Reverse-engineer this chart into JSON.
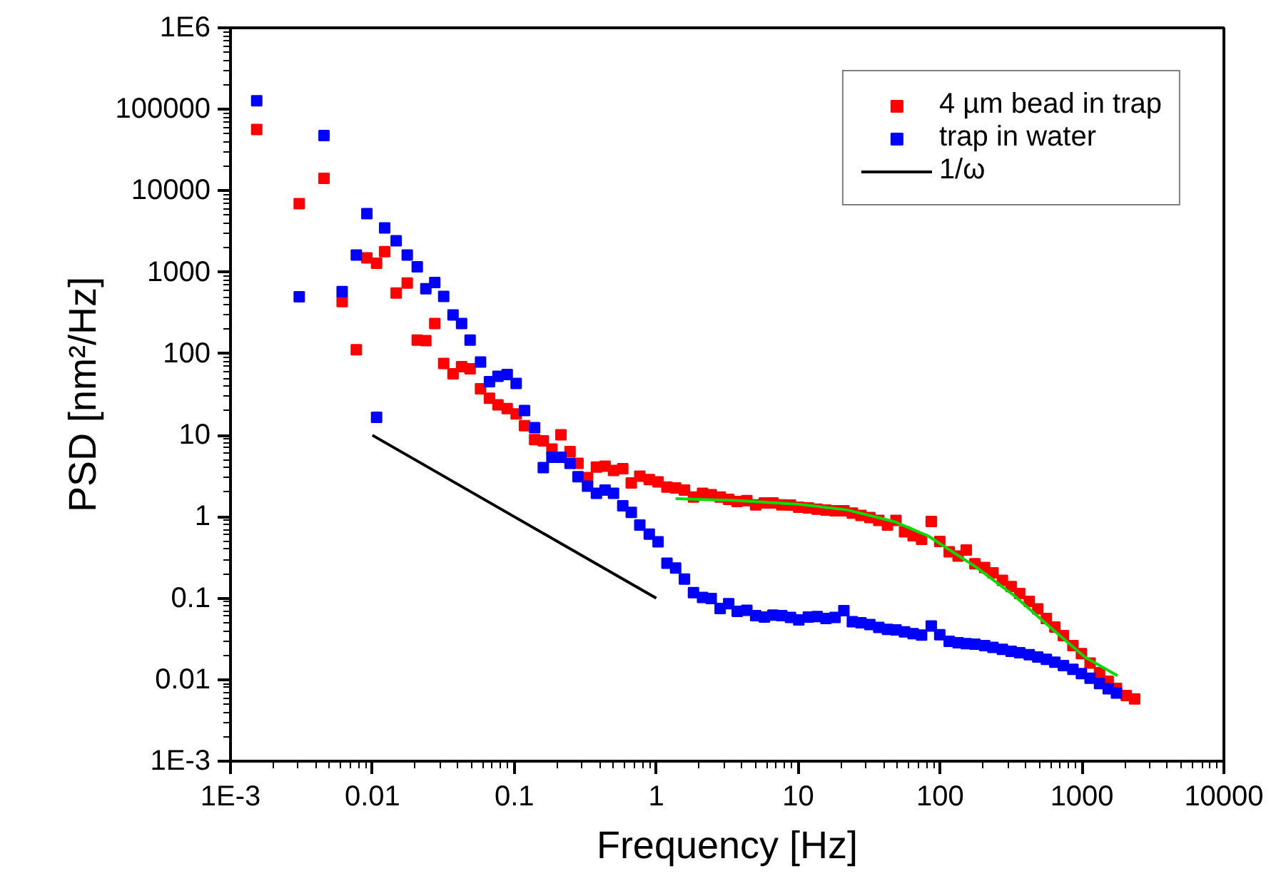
{
  "chart_data": {
    "type": "scatter",
    "xlabel": "Frequency [Hz]",
    "ylabel": "PSD [nm²/Hz]",
    "log": "xy",
    "grid": false,
    "legend": "top right",
    "xlim": [
      0.001,
      10000
    ],
    "ylim": [
      0.001,
      1000000
    ],
    "xticks": [
      {
        "value": 0.001,
        "label": "1E-3"
      },
      0.01,
      0.1,
      1,
      10,
      100,
      1000,
      10000
    ],
    "yticks": [
      {
        "value": 0.001,
        "label": "1E-3"
      },
      0.01,
      0.1,
      1,
      10,
      100,
      1000,
      10000,
      100000,
      {
        "value": 1000000,
        "label": "1E6"
      }
    ],
    "series": [
      {
        "name": "4 µm bead in trap",
        "marker": "square",
        "color": "#ff0000",
        "x": [
          0.00153,
          0.00305,
          0.00456,
          0.00612,
          0.0077,
          0.00914,
          0.0107,
          0.0122,
          0.0147,
          0.0176,
          0.0207,
          0.0238,
          0.0275,
          0.0318,
          0.037,
          0.0425,
          0.0488,
          0.0578,
          0.0668,
          0.0767,
          0.0891,
          0.103,
          0.118,
          0.139,
          0.16,
          0.184,
          0.213,
          0.247,
          0.281,
          0.328,
          0.379,
          0.436,
          0.5,
          0.581,
          0.667,
          0.766,
          0.893,
          1.03,
          1.19,
          1.37,
          1.58,
          1.83,
          2.12,
          2.44,
          2.82,
          3.24,
          3.72,
          4.35,
          5.02,
          5.78,
          6.64,
          7.67,
          8.83,
          10.1,
          11.8,
          13.6,
          15.7,
          18.2,
          21,
          24.1,
          27.7,
          32,
          37,
          42.6,
          48.9,
          56.2,
          64.6,
          74.1,
          86.7,
          99.5,
          116,
          134,
          153,
          176,
          206,
          236,
          275,
          317,
          364,
          425,
          488,
          561,
          644,
          740,
          863,
          991,
          1140,
          1330,
          1530,
          1750,
          2050,
          2350
        ],
        "values": [
          56600,
          6950,
          14200,
          436,
          112,
          1500,
          1290,
          1790,
          555,
          736,
          147,
          145,
          235,
          76,
          56.6,
          69.3,
          65.5,
          37.2,
          28.5,
          23.6,
          21.2,
          18.3,
          13.1,
          8.85,
          8.51,
          6.76,
          10.1,
          6.31,
          4.52,
          3.02,
          4.06,
          4.17,
          3.69,
          3.89,
          2.6,
          3.14,
          2.86,
          2.67,
          2.31,
          2.25,
          2.12,
          1.74,
          1.94,
          1.86,
          1.74,
          1.63,
          1.54,
          1.58,
          1.4,
          1.48,
          1.48,
          1.4,
          1.39,
          1.31,
          1.28,
          1.24,
          1.21,
          1.18,
          1.18,
          1.11,
          1.04,
          0.975,
          0.9,
          0.789,
          0.9,
          0.652,
          0.585,
          0.527,
          0.875,
          0.498,
          0.371,
          0.329,
          0.391,
          0.265,
          0.238,
          0.205,
          0.166,
          0.139,
          0.114,
          0.0914,
          0.074,
          0.0564,
          0.0443,
          0.0348,
          0.0262,
          0.0209,
          0.016,
          0.0122,
          0.00958,
          0.00782,
          0.0064,
          0.00582
        ]
      },
      {
        "name": "trap in water",
        "marker": "square",
        "color": "#0000ff",
        "x": [
          0.00153,
          0.00305,
          0.00456,
          0.00612,
          0.0077,
          0.00914,
          0.0107,
          0.0122,
          0.0147,
          0.0176,
          0.0207,
          0.0238,
          0.0275,
          0.0318,
          0.037,
          0.0425,
          0.0488,
          0.0578,
          0.0668,
          0.0767,
          0.0891,
          0.103,
          0.118,
          0.139,
          0.16,
          0.184,
          0.213,
          0.247,
          0.281,
          0.328,
          0.379,
          0.436,
          0.5,
          0.581,
          0.667,
          0.766,
          0.893,
          1.03,
          1.19,
          1.37,
          1.58,
          1.83,
          2.12,
          2.44,
          2.82,
          3.24,
          3.72,
          4.35,
          5.02,
          5.78,
          6.64,
          7.67,
          8.83,
          10.1,
          11.8,
          13.6,
          15.7,
          18.2,
          21,
          24.1,
          27.7,
          32,
          37,
          42.6,
          48.9,
          56.2,
          64.6,
          74.1,
          86.7,
          99.5,
          116,
          134,
          153,
          176,
          206,
          236,
          275,
          317,
          364,
          425,
          488,
          561,
          644,
          740,
          863,
          991,
          1140,
          1330,
          1530,
          1750
        ],
        "values": [
          127000,
          500,
          47600,
          578,
          1630,
          5250,
          16.6,
          3510,
          2440,
          1630,
          1170,
          627,
          748,
          506,
          299,
          235,
          147,
          79.1,
          45.5,
          52.9,
          55.7,
          43.2,
          20.1,
          12.4,
          4.0,
          5.37,
          5.37,
          4.52,
          3.1,
          2.37,
          1.94,
          2.12,
          1.94,
          1.36,
          1.13,
          0.789,
          0.61,
          0.492,
          0.269,
          0.235,
          0.172,
          0.117,
          0.102,
          0.099,
          0.0748,
          0.0857,
          0.069,
          0.071,
          0.0611,
          0.0587,
          0.0621,
          0.0611,
          0.0581,
          0.0542,
          0.0587,
          0.0597,
          0.0564,
          0.0581,
          0.0702,
          0.0514,
          0.05,
          0.0474,
          0.0438,
          0.0415,
          0.0408,
          0.0387,
          0.0368,
          0.0353,
          0.0455,
          0.0357,
          0.0296,
          0.0284,
          0.0277,
          0.0273,
          0.0262,
          0.0249,
          0.0236,
          0.0223,
          0.0214,
          0.0203,
          0.019,
          0.0178,
          0.0164,
          0.0149,
          0.0134,
          0.0119,
          0.0104,
          0.00897,
          0.00773,
          0.00684
        ]
      },
      {
        "name": "1/ω",
        "type": "line",
        "color": "#000000",
        "x": [
          0.01,
          1
        ],
        "values": [
          10,
          0.1
        ]
      },
      {
        "type": "line",
        "color": "#00dd00",
        "x": [
          1.37,
          3.78,
          10.3,
          22.3,
          48.2,
          82.8,
          179,
          332,
          615,
          1055,
          1780
        ],
        "values": [
          1.67,
          1.58,
          1.42,
          1.21,
          0.865,
          0.578,
          0.241,
          0.108,
          0.042,
          0.0188,
          0.0112
        ]
      }
    ]
  }
}
